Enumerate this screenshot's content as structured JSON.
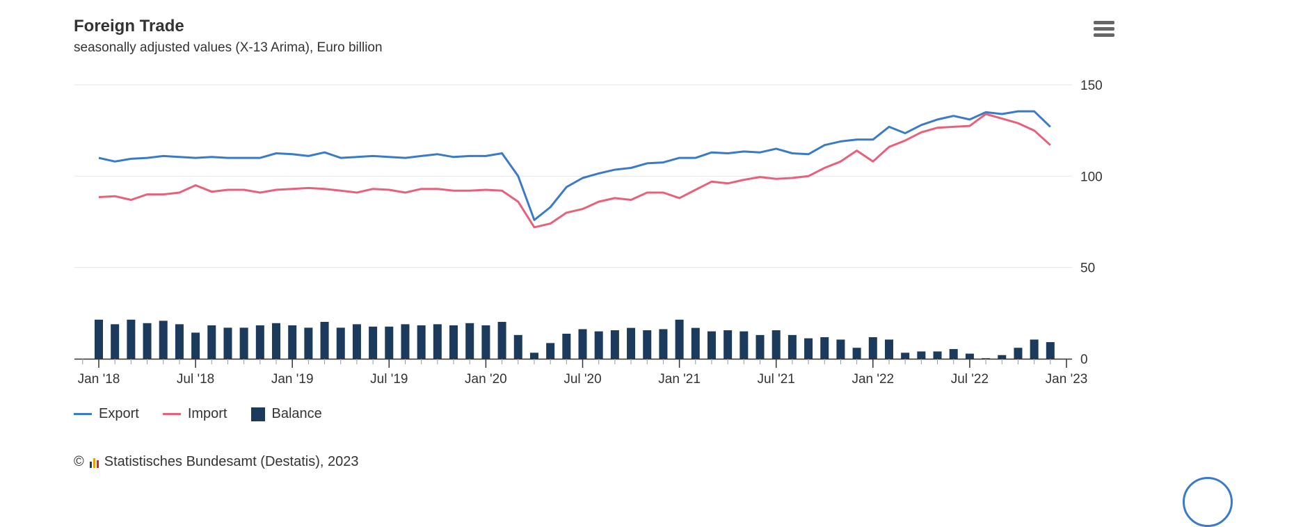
{
  "title": "Foreign Trade",
  "subtitle": "seasonally adjusted values (X-13 Arima), Euro billion",
  "credits": {
    "symbol": "©",
    "text": "Statistisches Bundesamt (Destatis), 2023"
  },
  "colors": {
    "export": "#3a7bc8",
    "import": "#e8607a",
    "balance": "#1b3a5c"
  },
  "chart_data": {
    "type": "line+bar",
    "title": "Foreign Trade",
    "subtitle": "seasonally adjusted values (X-13 Arima), Euro billion",
    "ylim": [
      0,
      150
    ],
    "y_ticks": [
      "0",
      "50",
      "100",
      "150"
    ],
    "y_tick_values": [
      0,
      50,
      100,
      150
    ],
    "x_start": "Jan 2018",
    "x_ticks": [
      "Jan '18",
      "Jul '18",
      "Jan '19",
      "Jul '19",
      "Jan '20",
      "Jul '20",
      "Jan '21",
      "Jul '21",
      "Jan '22",
      "Jul '22",
      "Jan '23"
    ],
    "x_tick_months": [
      0,
      6,
      12,
      18,
      24,
      30,
      36,
      42,
      48,
      54,
      60
    ],
    "grid": true,
    "legend_position": "bottom-left",
    "series": [
      {
        "name": "Export",
        "type": "line",
        "values": [
          110,
          108,
          109.5,
          110,
          111,
          110.5,
          110,
          110.5,
          110,
          110,
          110,
          112.5,
          112,
          111,
          113,
          110,
          110.5,
          111,
          110.5,
          110,
          111,
          112,
          110.5,
          111,
          111,
          112.5,
          100,
          76,
          83,
          94,
          99,
          101.5,
          103.5,
          104.5,
          107,
          107.5,
          110,
          110,
          113,
          112.5,
          113.5,
          113,
          115,
          112.5,
          112,
          117,
          119,
          120,
          120,
          127,
          123.5,
          128,
          131,
          133,
          131,
          135,
          134,
          135.5,
          135.5,
          127
        ]
      },
      {
        "name": "Import",
        "type": "line",
        "values": [
          88.5,
          89,
          87,
          90,
          90,
          91,
          95,
          91.5,
          92.5,
          92.5,
          91,
          92.5,
          93,
          93.5,
          93,
          92,
          91,
          93,
          92.5,
          91,
          93,
          93,
          92,
          92,
          92.5,
          92,
          86,
          72,
          74,
          80,
          82,
          86,
          88,
          87,
          91,
          91,
          88,
          92.5,
          97,
          96,
          98,
          99.5,
          98.5,
          99,
          100,
          104.5,
          108,
          114,
          108,
          116,
          119.5,
          124,
          126.5,
          127,
          127.5,
          134,
          131.5,
          129,
          125,
          117
        ]
      },
      {
        "name": "Balance",
        "type": "bar",
        "values": [
          21.4,
          18.9,
          21.4,
          19.5,
          20.8,
          18.9,
          14.3,
          18.3,
          17,
          17,
          18.3,
          19.5,
          18.3,
          17,
          20.2,
          17,
          18.9,
          17.6,
          17.6,
          18.9,
          18.3,
          18.9,
          18.3,
          19.5,
          18.3,
          20.2,
          13,
          3.3,
          8.6,
          13.7,
          16.2,
          15,
          15.6,
          16.9,
          15.6,
          16.2,
          21.4,
          16.9,
          15,
          15.6,
          15,
          13,
          15.6,
          13,
          11.2,
          11.8,
          10.5,
          6,
          11.8,
          10.5,
          3.3,
          4,
          4,
          5.3,
          2.8,
          0.3,
          2,
          6,
          10.5,
          9.1
        ]
      }
    ]
  }
}
